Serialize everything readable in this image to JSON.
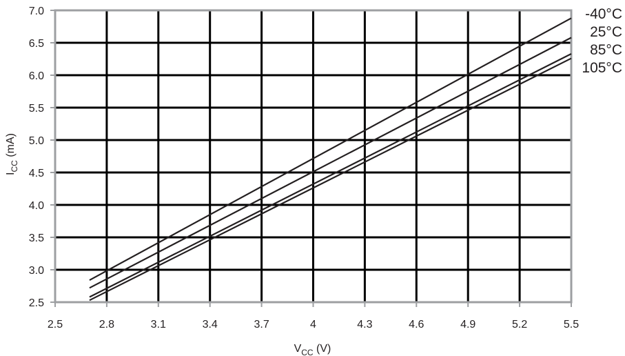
{
  "chart_data": {
    "type": "line",
    "xlabel": {
      "main": "V",
      "sub": "CC",
      "rest": " (V)"
    },
    "ylabel": {
      "main": "I",
      "sub": "CC",
      "rest": " (mA)"
    },
    "xlim": [
      2.5,
      5.5
    ],
    "ylim": [
      2.5,
      7.0
    ],
    "xticks": [
      "2.5",
      "2.8",
      "3.1",
      "3.4",
      "3.7",
      "4",
      "4.3",
      "4.6",
      "4.9",
      "5.2",
      "5.5"
    ],
    "yticks": [
      "2.5",
      "3.0",
      "3.5",
      "4.0",
      "4.5",
      "5.0",
      "5.5",
      "6.0",
      "6.5",
      "7.0"
    ],
    "grid": true,
    "legend": "right-end labels",
    "series": [
      {
        "name": "-40°C",
        "x": [
          2.7,
          5.5
        ],
        "y": [
          2.84,
          6.88
        ]
      },
      {
        "name": "25°C",
        "x": [
          2.7,
          5.5
        ],
        "y": [
          2.72,
          6.58
        ]
      },
      {
        "name": "85°C",
        "x": [
          2.7,
          5.5
        ],
        "y": [
          2.58,
          6.33
        ]
      },
      {
        "name": "105°C",
        "x": [
          2.7,
          5.5
        ],
        "y": [
          2.53,
          6.26
        ]
      }
    ]
  }
}
